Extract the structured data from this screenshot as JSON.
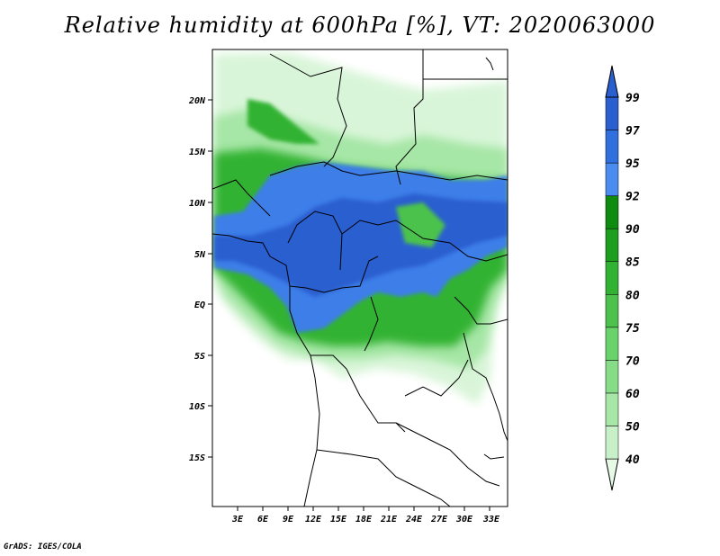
{
  "title": "Relative humidity at 600hPa [%], VT: 2020063000",
  "credit": "GrADS: IGES/COLA",
  "map": {
    "lon_range": [
      0,
      34
    ],
    "lat_range": [
      -20,
      25
    ],
    "lon_ticks": [
      "3E",
      "6E",
      "9E",
      "12E",
      "15E",
      "18E",
      "21E",
      "24E",
      "27E",
      "30E",
      "33E"
    ],
    "lat_ticks": [
      "20N",
      "15N",
      "10N",
      "5N",
      "EQ",
      "5S",
      "10S",
      "15S"
    ]
  },
  "colorbar": {
    "levels": [
      "40",
      "50",
      "60",
      "70",
      "75",
      "80",
      "85",
      "90",
      "92",
      "95",
      "97",
      "99"
    ],
    "colors": [
      "#e6fae6",
      "#c8f0c8",
      "#a6e6a6",
      "#87dc87",
      "#6ad26a",
      "#4cc24c",
      "#32b232",
      "#1e9e1e",
      "#0f8c0f",
      "#4a8cf0",
      "#2f6fde",
      "#2a5fd0"
    ]
  },
  "chart_data": {
    "type": "heatmap",
    "title": "Relative humidity at 600hPa [%], VT: 2020063000",
    "xlabel": "",
    "ylabel": "",
    "x_ticks": [
      "3E",
      "6E",
      "9E",
      "12E",
      "15E",
      "18E",
      "21E",
      "24E",
      "27E",
      "30E",
      "33E"
    ],
    "y_ticks": [
      "20N",
      "15N",
      "10N",
      "5N",
      "EQ",
      "5S",
      "10S",
      "15S"
    ],
    "colorbar_levels": [
      40,
      50,
      60,
      70,
      75,
      80,
      85,
      90,
      92,
      95,
      97,
      99
    ],
    "units": "%"
  }
}
